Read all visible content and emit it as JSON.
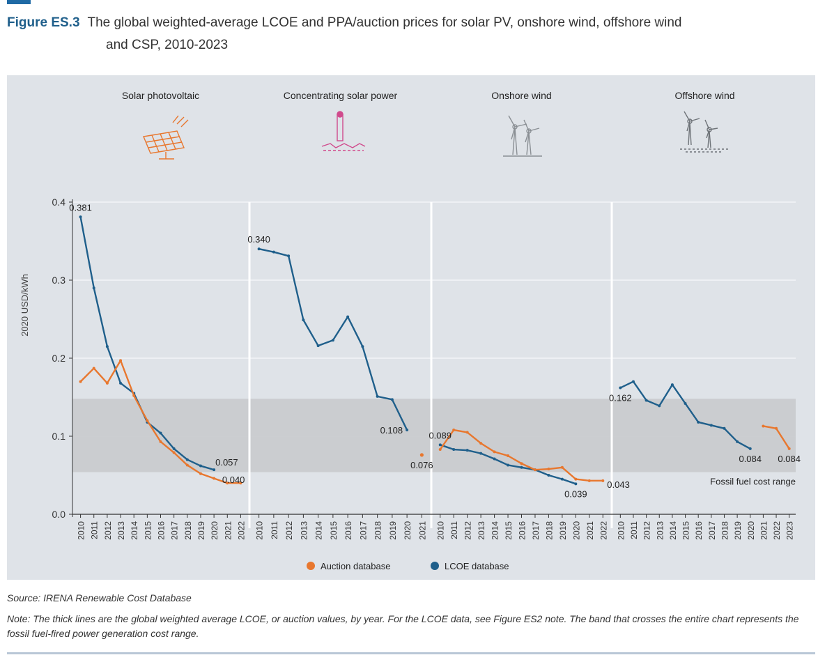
{
  "figure": {
    "label": "Figure ES.3",
    "title_line1": "The global weighted-average LCOE and PPA/auction prices for solar PV, onshore wind, offshore wind",
    "title_line2": "and CSP, 2010-2023"
  },
  "source": "Source: IRENA Renewable Cost Database",
  "note": "Note: The thick lines are the global weighted average LCOE, or auction values, by year. For the LCOE data, see Figure ES2 note. The band that crosses the entire chart represents the fossil fuel-fired power generation cost range.",
  "colors": {
    "auction": "#e8772e",
    "lcoe": "#1f5f8b",
    "band": "#c9cbcf",
    "panel": "#dfe3e8"
  },
  "chart_data": {
    "type": "line",
    "ylabel": "2020 USD/kWh",
    "ylim": [
      0,
      0.4
    ],
    "yticks": [
      "0.0",
      "0.1",
      "0.2",
      "0.3",
      "0.4"
    ],
    "ytick_values": [
      0,
      0.1,
      0.2,
      0.3,
      0.4
    ],
    "band": {
      "low": 0.054,
      "high": 0.148,
      "label": "Fossil fuel cost range"
    },
    "legend": [
      {
        "key": "auction",
        "name": "Auction database"
      },
      {
        "key": "lcoe",
        "name": "LCOE database"
      }
    ],
    "panels": [
      {
        "title": "Solar photovoltaic",
        "icon": "solar-panel-icon",
        "years": [
          "2010",
          "2011",
          "2012",
          "2013",
          "2014",
          "2015",
          "2016",
          "2017",
          "2018",
          "2019",
          "2020",
          "2021",
          "2022"
        ],
        "series": [
          {
            "name": "LCOE database",
            "key": "lcoe",
            "start": 0,
            "values": [
              0.381,
              0.29,
              0.215,
              0.168,
              0.155,
              0.118,
              0.104,
              0.084,
              0.07,
              0.062,
              0.057
            ]
          },
          {
            "name": "Auction database",
            "key": "auction",
            "start": 0,
            "values": [
              0.17,
              0.187,
              0.168,
              0.197,
              0.152,
              0.12,
              0.093,
              0.079,
              0.063,
              0.052,
              0.046,
              0.04,
              0.04
            ]
          }
        ],
        "labels": [
          {
            "text": "0.381",
            "series": "lcoe",
            "index": 0,
            "pos": "above"
          },
          {
            "text": "0.057",
            "series": "lcoe",
            "index": 10,
            "pos": "right-above"
          },
          {
            "text": "0.040",
            "series": "auction",
            "index": 12,
            "pos": "left-above"
          }
        ]
      },
      {
        "title": "Concentrating solar power",
        "icon": "csp-tower-icon",
        "years": [
          "2010",
          "2011",
          "2012",
          "2013",
          "2014",
          "2015",
          "2016",
          "2017",
          "2018",
          "2019",
          "2020",
          "2021"
        ],
        "series": [
          {
            "name": "LCOE database",
            "key": "lcoe",
            "start": 0,
            "values": [
              0.34,
              0.336,
              0.331,
              0.249,
              0.216,
              0.223,
              0.253,
              0.215,
              0.151,
              0.147,
              0.108
            ]
          },
          {
            "name": "Auction database",
            "key": "auction",
            "start": 11,
            "values": [
              0.076
            ]
          }
        ],
        "labels": [
          {
            "text": "0.340",
            "series": "lcoe",
            "index": 0,
            "pos": "above"
          },
          {
            "text": "0.108",
            "series": "lcoe",
            "index": 10,
            "pos": "left"
          },
          {
            "text": "0.076",
            "series": "auction",
            "index": 0,
            "pos": "below"
          }
        ]
      },
      {
        "title": "Onshore wind",
        "icon": "onshore-wind-icon",
        "years": [
          "2010",
          "2011",
          "2012",
          "2013",
          "2014",
          "2015",
          "2016",
          "2017",
          "2018",
          "2019",
          "2020",
          "2021",
          "2022"
        ],
        "series": [
          {
            "name": "LCOE database",
            "key": "lcoe",
            "start": 0,
            "values": [
              0.089,
              0.083,
              0.082,
              0.078,
              0.071,
              0.063,
              0.06,
              0.057,
              0.05,
              0.045,
              0.039
            ]
          },
          {
            "name": "Auction database",
            "key": "auction",
            "start": 0,
            "values": [
              0.083,
              0.108,
              0.105,
              0.091,
              0.08,
              0.075,
              0.065,
              0.057,
              0.058,
              0.06,
              0.045,
              0.043,
              0.043
            ]
          }
        ],
        "labels": [
          {
            "text": "0.089",
            "series": "lcoe",
            "index": 0,
            "pos": "above"
          },
          {
            "text": "0.039",
            "series": "lcoe",
            "index": 10,
            "pos": "below"
          },
          {
            "text": "0.043",
            "series": "auction",
            "index": 12,
            "pos": "right-below"
          }
        ]
      },
      {
        "title": "Offshore wind",
        "icon": "offshore-wind-icon",
        "years": [
          "2010",
          "2011",
          "2012",
          "2013",
          "2014",
          "2015",
          "2016",
          "2017",
          "2018",
          "2019",
          "2020",
          "2021",
          "2022",
          "2023"
        ],
        "series": [
          {
            "name": "LCOE database",
            "key": "lcoe",
            "start": 0,
            "values": [
              0.162,
              0.17,
              0.146,
              0.139,
              0.166,
              0.142,
              0.118,
              0.114,
              0.11,
              0.093,
              0.084
            ]
          },
          {
            "name": "Auction database",
            "key": "auction",
            "start": 11,
            "values": [
              0.113,
              0.11,
              0.084
            ]
          }
        ],
        "labels": [
          {
            "text": "0.162",
            "series": "lcoe",
            "index": 0,
            "pos": "below"
          },
          {
            "text": "0.084",
            "series": "lcoe",
            "index": 10,
            "pos": "below"
          },
          {
            "text": "0.084",
            "series": "auction",
            "index": 2,
            "pos": "below"
          }
        ]
      }
    ]
  }
}
